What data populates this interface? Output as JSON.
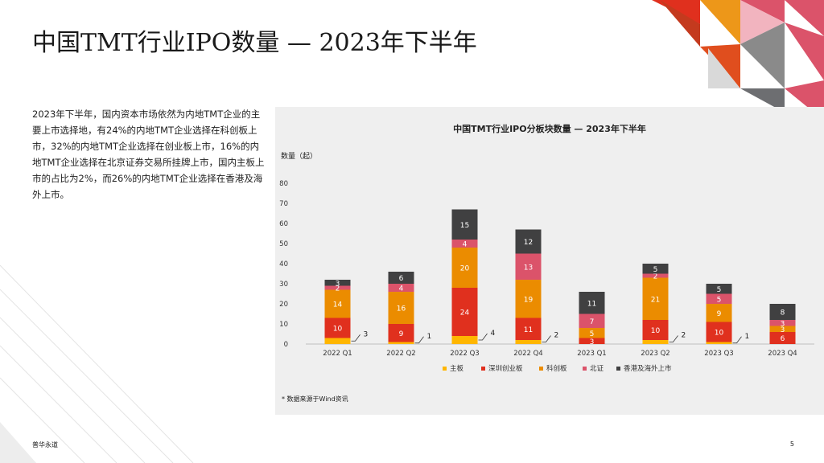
{
  "page": {
    "title": "中国TMT行业IPO数量 — 2023年下半年",
    "body": "2023年下半年，国内资本市场依然为内地TMT企业的主要上市选择地，有24%的内地TMT企业选择在科创板上市，32%的内地TMT企业选择在创业板上市，16%的内地TMT企业选择在北京证券交易所挂牌上市，国内主板上市的占比为2%，而26%的内地TMT企业选择在香港及海外上市。",
    "footer_brand": "普华永道",
    "page_number": "5",
    "source_note": "* 数据来源于Wind资讯"
  },
  "chart_data": {
    "type": "bar",
    "stacked": true,
    "title": "中国TMT行业IPO分板块数量 — 2023年下半年",
    "ylabel": "数量（起）",
    "ylim": [
      0,
      80
    ],
    "yticks": [
      0,
      10,
      20,
      30,
      40,
      50,
      60,
      70,
      80
    ],
    "categories": [
      "2022 Q1",
      "2022 Q2",
      "2022 Q3",
      "2022 Q4",
      "2023 Q1",
      "2023 Q2",
      "2023 Q3",
      "2023 Q4"
    ],
    "series": [
      {
        "name": "主板",
        "color": "#FFB600",
        "values": [
          3,
          1,
          4,
          2,
          0,
          2,
          1,
          0
        ]
      },
      {
        "name": "深圳创业板",
        "color": "#E0301E",
        "values": [
          10,
          9,
          24,
          11,
          3,
          10,
          10,
          6
        ]
      },
      {
        "name": "科创板",
        "color": "#EB8C00",
        "values": [
          14,
          16,
          20,
          19,
          5,
          21,
          9,
          3
        ]
      },
      {
        "name": "北证",
        "color": "#DB536A",
        "values": [
          2,
          4,
          4,
          13,
          7,
          2,
          5,
          3
        ]
      },
      {
        "name": "香港及海外上市",
        "color": "#404041",
        "values": [
          3,
          6,
          15,
          12,
          11,
          5,
          5,
          8
        ]
      }
    ],
    "legend_position": "bottom",
    "grid": false
  }
}
